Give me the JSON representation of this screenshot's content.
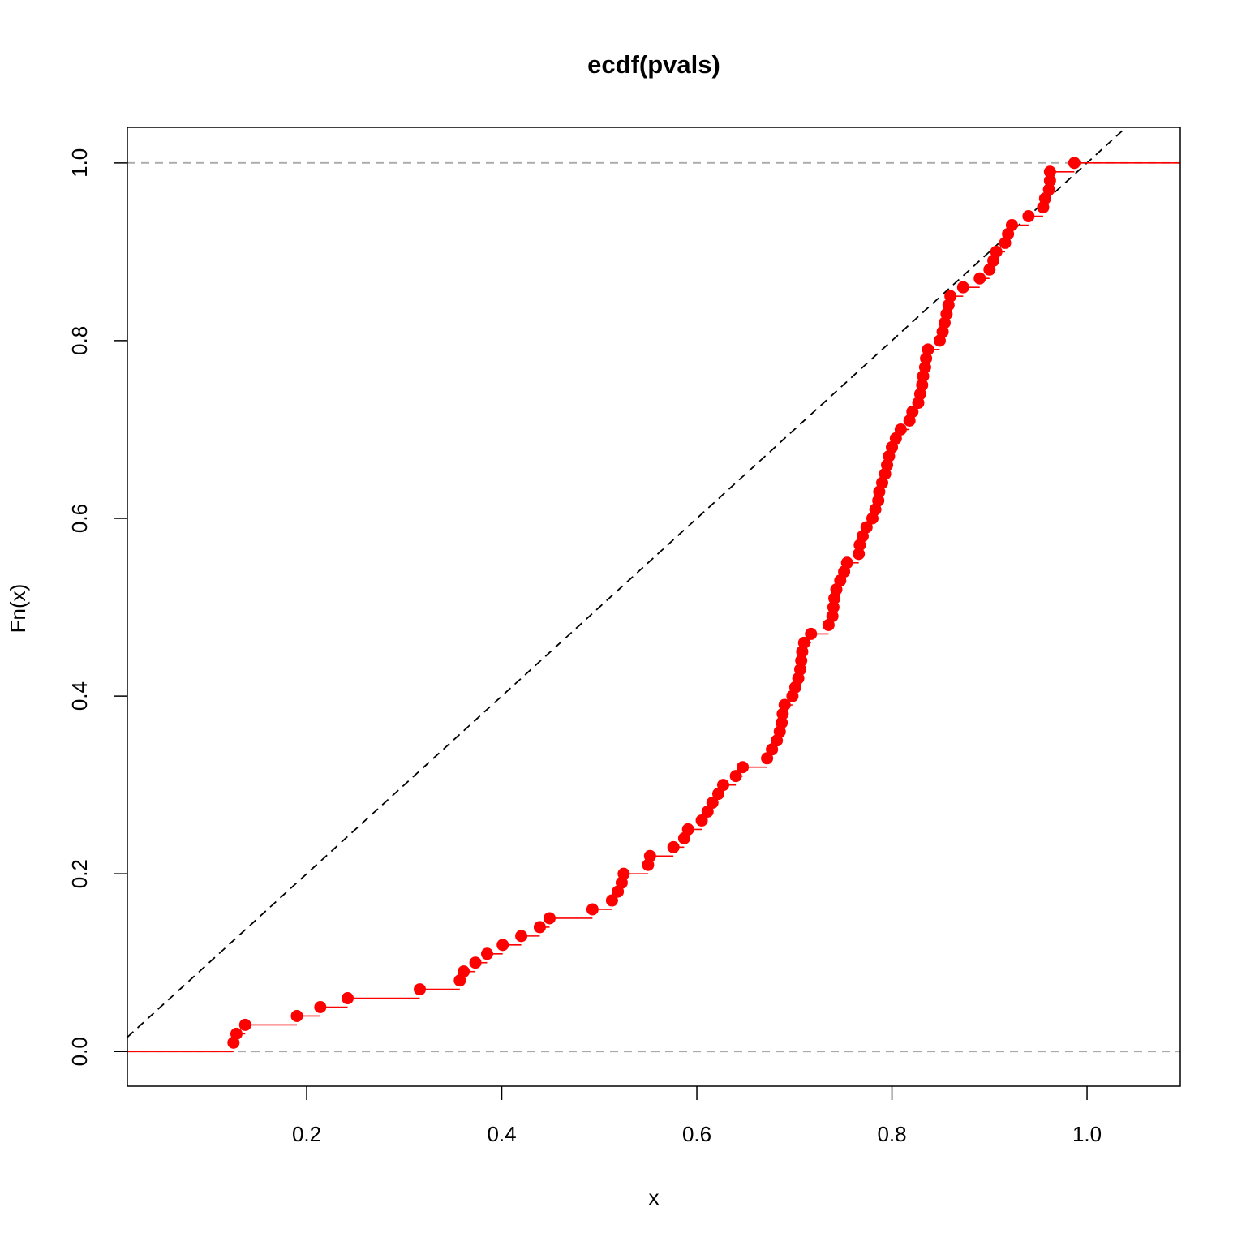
{
  "chart_data": {
    "type": "ecdf",
    "title": "ecdf(pvals)",
    "x_label": "x",
    "y_label": "Fn(x)",
    "color": "#ff0000",
    "x": [
      0.125,
      0.128,
      0.137,
      0.19,
      0.214,
      0.242,
      0.316,
      0.357,
      0.361,
      0.373,
      0.385,
      0.401,
      0.42,
      0.439,
      0.449,
      0.493,
      0.513,
      0.519,
      0.523,
      0.525,
      0.55,
      0.552,
      0.576,
      0.587,
      0.591,
      0.605,
      0.611,
      0.616,
      0.622,
      0.627,
      0.64,
      0.647,
      0.672,
      0.677,
      0.682,
      0.685,
      0.687,
      0.688,
      0.69,
      0.698,
      0.701,
      0.704,
      0.706,
      0.707,
      0.708,
      0.71,
      0.717,
      0.735,
      0.739,
      0.74,
      0.741,
      0.743,
      0.747,
      0.751,
      0.754,
      0.766,
      0.767,
      0.77,
      0.774,
      0.78,
      0.783,
      0.786,
      0.787,
      0.79,
      0.793,
      0.795,
      0.797,
      0.8,
      0.804,
      0.809,
      0.818,
      0.821,
      0.827,
      0.829,
      0.831,
      0.832,
      0.834,
      0.835,
      0.837,
      0.849,
      0.852,
      0.854,
      0.856,
      0.858,
      0.86,
      0.873,
      0.89,
      0.9,
      0.904,
      0.907,
      0.916,
      0.919,
      0.923,
      0.94,
      0.955,
      0.957,
      0.961,
      0.962,
      0.962,
      0.987
    ],
    "values": [
      0.01,
      0.02,
      0.03,
      0.04,
      0.05,
      0.06,
      0.07,
      0.08,
      0.09,
      0.1,
      0.11,
      0.12,
      0.13,
      0.14,
      0.15,
      0.16,
      0.17,
      0.18,
      0.19,
      0.2,
      0.21,
      0.22,
      0.23,
      0.24,
      0.25,
      0.26,
      0.27,
      0.28,
      0.29,
      0.3,
      0.31,
      0.32,
      0.33,
      0.34,
      0.35,
      0.36,
      0.37,
      0.38,
      0.39,
      0.4,
      0.41,
      0.42,
      0.43,
      0.44,
      0.45,
      0.46,
      0.47,
      0.48,
      0.49,
      0.5,
      0.51,
      0.52,
      0.53,
      0.54,
      0.55,
      0.56,
      0.57,
      0.58,
      0.59,
      0.6,
      0.61,
      0.62,
      0.63,
      0.64,
      0.65,
      0.66,
      0.67,
      0.68,
      0.69,
      0.7,
      0.71,
      0.72,
      0.73,
      0.74,
      0.75,
      0.76,
      0.77,
      0.78,
      0.79,
      0.8,
      0.81,
      0.82,
      0.83,
      0.84,
      0.85,
      0.86,
      0.87,
      0.88,
      0.89,
      0.9,
      0.91,
      0.92,
      0.93,
      0.94,
      0.95,
      0.96,
      0.97,
      0.98,
      0.99,
      1.0
    ],
    "xlim": [
      0.0162,
      1.0956
    ],
    "ylim": [
      -0.039,
      1.04
    ],
    "xticks": [
      0.2,
      0.4,
      0.6,
      0.8,
      {
        "value": 1,
        "label": "1.0"
      }
    ],
    "yticks": [
      {
        "value": 0,
        "label": "0.0"
      },
      0.2,
      0.4,
      0.6,
      0.8,
      {
        "value": 1,
        "label": "1.0"
      }
    ],
    "hlines": [
      0,
      1
    ],
    "abline": {
      "intercept": 0,
      "slope": 1
    }
  }
}
